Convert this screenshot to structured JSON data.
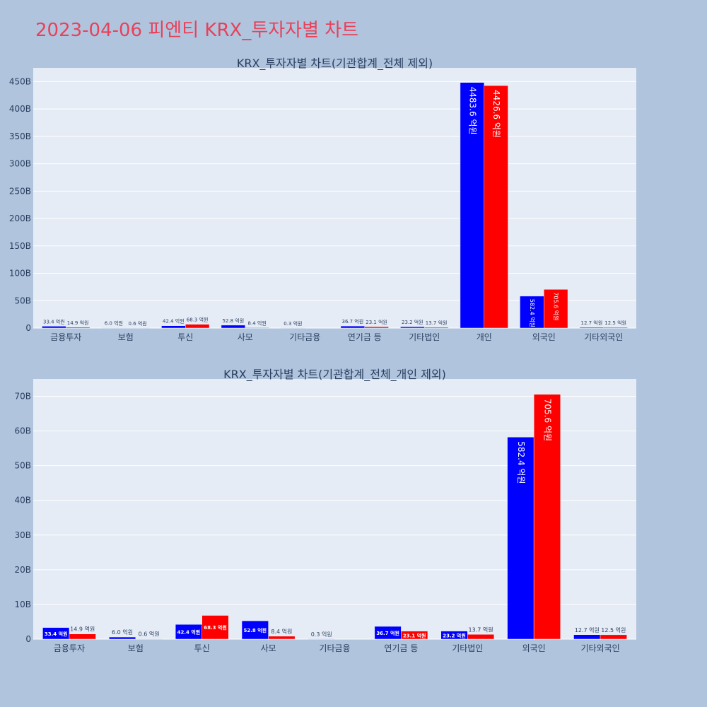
{
  "page": {
    "title": "2023-04-06 피엔티 KRX_투자자별 차트"
  },
  "colors": {
    "buy": "#0000ff",
    "sell": "#ff0000",
    "plot_bg": "#e5ecf6",
    "page_bg": "#b0c4de",
    "title": "#e8415a"
  },
  "chart_data": [
    {
      "type": "bar",
      "title": "KRX_투자자별 차트(기관합계_전체 제외)",
      "categories": [
        "금융투자",
        "보험",
        "투신",
        "사모",
        "기타금융",
        "연기금 등",
        "기타법인",
        "개인",
        "외국인",
        "기타외국인"
      ],
      "series": [
        {
          "values": [
            3.34,
            0.6,
            4.24,
            5.28,
            0.03,
            3.67,
            2.32,
            448.36,
            58.24,
            1.27
          ],
          "labels": [
            "33.4 억원",
            "6.0 억원",
            "42.4 억원",
            "52.8 억원",
            "0.3 억원",
            "36.7 억원",
            "23.2 억원",
            "4483.6 억원",
            "582.4 억원",
            "12.7 억원"
          ]
        },
        {
          "values": [
            1.49,
            0.06,
            6.83,
            0.84,
            0,
            2.31,
            1.37,
            442.66,
            70.56,
            1.25
          ],
          "labels": [
            "14.9 억원",
            "0.6 억원",
            "68.3 억원",
            "8.4 억원",
            "",
            "23.1 억원",
            "13.7 억원",
            "4426.6 억원",
            "705.6 억원",
            "12.5 억원"
          ]
        }
      ],
      "ylim": [
        0,
        475
      ],
      "yticks": [
        0,
        50,
        100,
        150,
        200,
        250,
        300,
        350,
        400,
        450
      ],
      "ytick_labels": [
        "0",
        "50B",
        "100B",
        "150B",
        "200B",
        "250B",
        "300B",
        "350B",
        "400B",
        "450B"
      ],
      "grid": true
    },
    {
      "type": "bar",
      "title": "KRX_투자자별 차트(기관합계_전체_개인 제외)",
      "categories": [
        "금융투자",
        "보험",
        "투신",
        "사모",
        "기타금융",
        "연기금 등",
        "기타법인",
        "외국인",
        "기타외국인"
      ],
      "series": [
        {
          "values": [
            3.34,
            0.6,
            4.24,
            5.28,
            0.03,
            3.67,
            2.32,
            58.24,
            1.27
          ],
          "labels": [
            "33.4 억원",
            "6.0 억원",
            "42.4 억원",
            "52.8 억원",
            "0.3 억원",
            "36.7 억원",
            "23.2 억원",
            "582.4 억원",
            "12.7 억원"
          ]
        },
        {
          "values": [
            1.49,
            0.06,
            6.83,
            0.84,
            0,
            2.31,
            1.37,
            70.56,
            1.25
          ],
          "labels": [
            "14.9 억원",
            "0.6 억원",
            "68.3 억원",
            "8.4 억원",
            "",
            "23.1 억원",
            "13.7 억원",
            "705.6 억원",
            "12.5 억원"
          ]
        }
      ],
      "ylim": [
        0,
        75
      ],
      "yticks": [
        0,
        10,
        20,
        30,
        40,
        50,
        60,
        70
      ],
      "ytick_labels": [
        "0",
        "10B",
        "20B",
        "30B",
        "40B",
        "50B",
        "60B",
        "70B"
      ],
      "grid": true
    }
  ]
}
